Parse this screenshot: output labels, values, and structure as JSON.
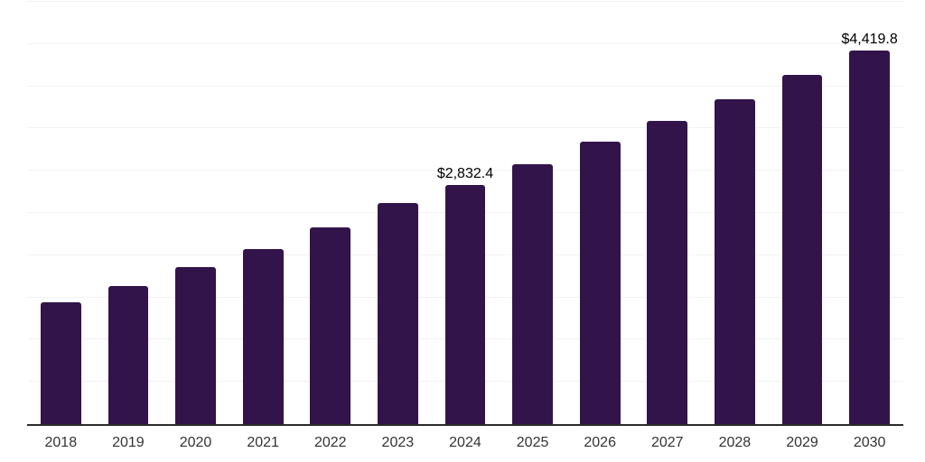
{
  "theme": {
    "background_color": "#ffffff",
    "bar_color": "#33144a",
    "gridline_color": "#f2f2f2",
    "axis_line_color": "#2b2b2b",
    "data_label_color": "#000000",
    "tick_label_color": "#333333"
  },
  "chart_data": {
    "type": "bar",
    "title": "",
    "xlabel": "",
    "ylabel": "",
    "categories": [
      "2018",
      "2019",
      "2020",
      "2021",
      "2022",
      "2023",
      "2024",
      "2025",
      "2026",
      "2027",
      "2028",
      "2029",
      "2030"
    ],
    "values": [
      1445,
      1630,
      1855,
      2075,
      2325,
      2615,
      2832.4,
      3080,
      3345,
      3590,
      3850,
      4135,
      4419.8
    ],
    "data_labels": [
      null,
      null,
      null,
      null,
      null,
      null,
      "$2,832.4",
      null,
      null,
      null,
      null,
      null,
      "$4,419.8"
    ],
    "ylim": [
      0,
      5000
    ],
    "grid_step": 500,
    "grid": "horizontal-only",
    "y_tick_labels_visible": false,
    "legend": "none",
    "bar_corner_radius": "rounded-top"
  }
}
